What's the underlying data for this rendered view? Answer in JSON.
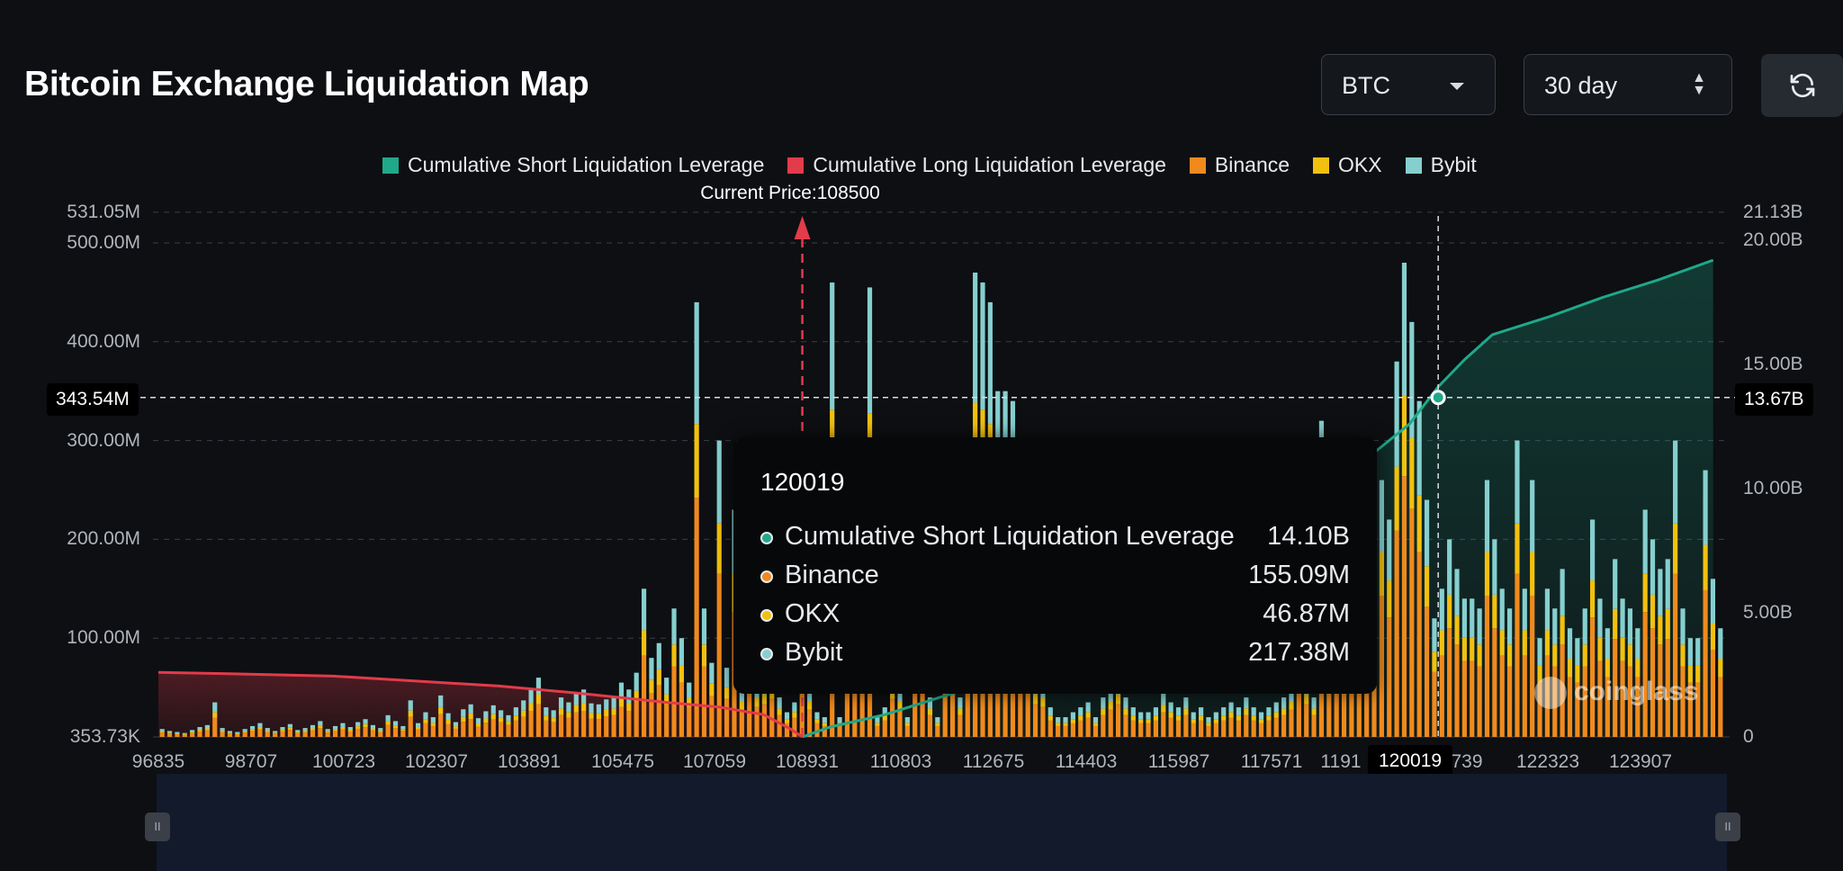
{
  "header": {
    "title": "Bitcoin Exchange Liquidation Map",
    "asset_select": "BTC",
    "period_select": "30 day"
  },
  "icons": {
    "refresh": "refresh-icon",
    "asset_caret": "chevron-down-icon",
    "period_stepper": "up-down-arrows-icon",
    "watermark": "coinglass-logo"
  },
  "colors": {
    "short_cum": "#1fa88a",
    "long_cum": "#e23b4a",
    "binance": "#f08a1c",
    "okx": "#f2c10f",
    "bybit": "#86cfcf"
  },
  "legend": [
    {
      "label": "Cumulative Short Liquidation Leverage",
      "color": "#1fa88a"
    },
    {
      "label": "Cumulative Long Liquidation Leverage",
      "color": "#e23b4a"
    },
    {
      "label": "Binance",
      "color": "#f08a1c"
    },
    {
      "label": "OKX",
      "color": "#f2c10f"
    },
    {
      "label": "Bybit",
      "color": "#86cfcf"
    }
  ],
  "current_price_label": "Current Price:108500",
  "crosshair": {
    "y_left_label": "343.54M",
    "y_right_label": "13.67B",
    "x_label": "120019"
  },
  "tooltip": {
    "title": "120019",
    "rows": [
      {
        "name": "Cumulative Short Liquidation Leverage",
        "value": "14.10B",
        "color": "#1fa88a"
      },
      {
        "name": "Binance",
        "value": "155.09M",
        "color": "#f08a1c"
      },
      {
        "name": "OKX",
        "value": "46.87M",
        "color": "#f2c10f"
      },
      {
        "name": "Bybit",
        "value": "217.38M",
        "color": "#86cfcf"
      }
    ]
  },
  "watermark_text": "coinglass",
  "chart_data": {
    "type": "bar",
    "x_tick_labels": [
      "96835",
      "98707",
      "100723",
      "102307",
      "103891",
      "105475",
      "107059",
      "108931",
      "110803",
      "112675",
      "114403",
      "115987",
      "117571",
      "1191",
      "739",
      "122323",
      "123907"
    ],
    "y_left_tick_labels": [
      "531.05M",
      "500.00M",
      "400.00M",
      "300.00M",
      "200.00M",
      "100.00M",
      "353.73K"
    ],
    "y_right_tick_labels": [
      "21.13B",
      "20.00B",
      "15.00B",
      "10.00B",
      "5.00B",
      "0"
    ],
    "ylim_left_millions": [
      0.35,
      531.05
    ],
    "ylim_right_billions": [
      0,
      21.13
    ],
    "price_range": [
      96835,
      125200
    ],
    "current_price": 108500,
    "stack_order": [
      "binance",
      "okx",
      "bybit"
    ],
    "bar_series_totals_millions": [
      8,
      6,
      5,
      4,
      7,
      10,
      12,
      35,
      9,
      6,
      5,
      8,
      11,
      14,
      9,
      6,
      10,
      13,
      7,
      9,
      12,
      16,
      8,
      11,
      14,
      10,
      15,
      18,
      12,
      9,
      22,
      16,
      11,
      37,
      14,
      25,
      20,
      42,
      24,
      15,
      28,
      33,
      19,
      26,
      32,
      27,
      22,
      30,
      37,
      48,
      60,
      30,
      27,
      40,
      35,
      45,
      48,
      34,
      33,
      38,
      40,
      55,
      48,
      65,
      150,
      80,
      95,
      60,
      130,
      100,
      55,
      440,
      130,
      75,
      300,
      70,
      230,
      50,
      120,
      55,
      60,
      70,
      40,
      25,
      35,
      90,
      50,
      25,
      20,
      460,
      20,
      200,
      130,
      160,
      455,
      20,
      30,
      70,
      50,
      20,
      80,
      90,
      40,
      20,
      120,
      140,
      40,
      90,
      470,
      460,
      440,
      350,
      350,
      340,
      300,
      120,
      60,
      55,
      30,
      20,
      20,
      25,
      30,
      35,
      20,
      40,
      50,
      60,
      40,
      30,
      25,
      25,
      30,
      45,
      35,
      30,
      40,
      25,
      30,
      20,
      25,
      30,
      35,
      30,
      40,
      30,
      25,
      30,
      35,
      40,
      50,
      120,
      60,
      40,
      320,
      300,
      180,
      80,
      90,
      160,
      100,
      120,
      260,
      220,
      380,
      480,
      420,
      340,
      240,
      120,
      150,
      200,
      170,
      140,
      140,
      130,
      260,
      200,
      150,
      130,
      300,
      150,
      260,
      100,
      150,
      130,
      170,
      110,
      100,
      130,
      220,
      140,
      110,
      180,
      140,
      130,
      110,
      230,
      200,
      170,
      180,
      300,
      130,
      100,
      100,
      270,
      160,
      110
    ],
    "bar_binance_fraction": 0.55,
    "bar_okx_fraction": 0.17,
    "long_cumulative_billions": {
      "x": [
        96835,
        98000,
        100000,
        101500,
        103000,
        104500,
        106000,
        107000,
        107800,
        108300,
        108500
      ],
      "y": [
        2.6,
        2.55,
        2.45,
        2.25,
        2.05,
        1.75,
        1.4,
        1.2,
        0.9,
        0.3,
        0
      ]
    },
    "short_cumulative_billions": {
      "x": [
        108500,
        109000,
        110000,
        111000,
        112500,
        114000,
        116000,
        117500,
        118500,
        119500,
        120019,
        120500,
        121000,
        122000,
        123000,
        124000,
        125000
      ],
      "y": [
        0,
        0.4,
        0.9,
        1.6,
        2.6,
        4.0,
        6.5,
        9.0,
        10.8,
        12.6,
        14.1,
        15.2,
        16.2,
        16.9,
        17.7,
        18.4,
        19.2
      ]
    }
  }
}
